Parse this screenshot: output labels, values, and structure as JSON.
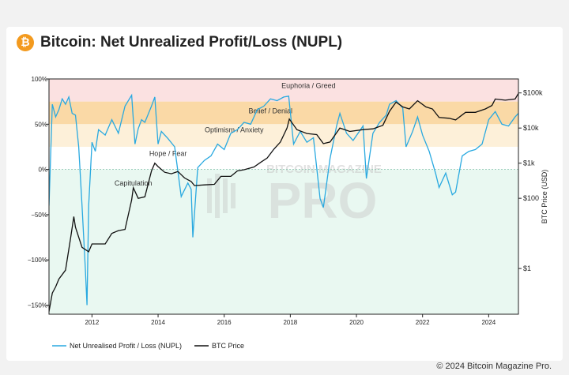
{
  "header": {
    "title": "Bitcoin: Net Unrealized Profit/Loss (NUPL)",
    "logo_glyph": "₿",
    "logo_icon": "bitcoin-icon",
    "logo_color": "#f39a1e"
  },
  "footer": {
    "copyright": "© 2024 Bitcoin Magazine Pro."
  },
  "watermark": {
    "top": "BITCOIN MAGAZINE",
    "bottom": "PRO"
  },
  "chart_data": {
    "type": "line",
    "title": "",
    "xlabel": "",
    "ylabel_left": "",
    "ylabel_right": "BTC Price (USD)",
    "x_range": [
      2010.7,
      2024.9
    ],
    "x_ticks": [
      2012,
      2014,
      2016,
      2018,
      2020,
      2022,
      2024
    ],
    "x_tick_labels": [
      "2012",
      "2014",
      "2016",
      "2018",
      "2020",
      "2022",
      "2024"
    ],
    "y_left_range": [
      -160,
      100
    ],
    "y_left_ticks": [
      100,
      50,
      0,
      -50,
      -100,
      -150
    ],
    "y_left_tick_labels": [
      "100%",
      "50%",
      "0%",
      "−50%",
      "−100%",
      "−150%"
    ],
    "y_right_scale": "log",
    "y_right_range": [
      0.05,
      250000
    ],
    "y_right_ticks": [
      100000,
      10000,
      1000,
      100,
      1
    ],
    "y_right_tick_labels": [
      "$100k",
      "$10k",
      "$1k",
      "$100",
      "$1"
    ],
    "grid": false,
    "legend_position": "bottom-left",
    "zones": [
      {
        "label": "Euphoria / Greed",
        "from": 75,
        "to": 100,
        "color": "#fbe1e1"
      },
      {
        "label": "Belief / Denial",
        "from": 50,
        "to": 75,
        "color": "#fad9a6"
      },
      {
        "label": "Optimism / Anxiety",
        "from": 25,
        "to": 50,
        "color": "#fdf0d9"
      },
      {
        "label": "Hope / Fear",
        "from": 0,
        "to": 25,
        "color": "#ffffff"
      },
      {
        "label": "Capitulation",
        "from": -160,
        "to": 0,
        "color": "#e9f8f1"
      }
    ],
    "series": [
      {
        "name": "Net Unrealised Profit / Loss (NUPL)",
        "axis": "left",
        "color": "#29a9e0",
        "x": [
          2010.7,
          2010.8,
          2010.9,
          2011.0,
          2011.1,
          2011.2,
          2011.3,
          2011.4,
          2011.5,
          2011.6,
          2011.7,
          2011.8,
          2011.85,
          2011.9,
          2012.0,
          2012.1,
          2012.2,
          2012.4,
          2012.6,
          2012.8,
          2013.0,
          2013.2,
          2013.3,
          2013.4,
          2013.5,
          2013.6,
          2013.8,
          2013.9,
          2014.0,
          2014.1,
          2014.3,
          2014.5,
          2014.7,
          2014.9,
          2015.0,
          2015.05,
          2015.2,
          2015.4,
          2015.6,
          2015.8,
          2016.0,
          2016.2,
          2016.4,
          2016.6,
          2016.8,
          2017.0,
          2017.2,
          2017.4,
          2017.6,
          2017.8,
          2017.95,
          2018.1,
          2018.3,
          2018.5,
          2018.7,
          2018.9,
          2019.0,
          2019.2,
          2019.4,
          2019.5,
          2019.7,
          2019.9,
          2020.2,
          2020.3,
          2020.5,
          2020.7,
          2020.9,
          2021.0,
          2021.2,
          2021.4,
          2021.5,
          2021.7,
          2021.85,
          2022.0,
          2022.2,
          2022.4,
          2022.5,
          2022.7,
          2022.9,
          2023.0,
          2023.2,
          2023.4,
          2023.6,
          2023.8,
          2024.0,
          2024.2,
          2024.4,
          2024.6,
          2024.8,
          2024.9
        ],
        "values": [
          -40,
          72,
          58,
          66,
          78,
          72,
          80,
          62,
          60,
          25,
          -40,
          -110,
          -150,
          -40,
          30,
          20,
          44,
          38,
          55,
          40,
          70,
          82,
          28,
          45,
          55,
          52,
          70,
          80,
          28,
          42,
          34,
          25,
          -30,
          -15,
          -22,
          -75,
          2,
          10,
          15,
          28,
          22,
          40,
          44,
          52,
          50,
          66,
          70,
          78,
          76,
          80,
          81,
          28,
          42,
          30,
          35,
          -32,
          -42,
          12,
          48,
          62,
          40,
          32,
          48,
          -10,
          40,
          52,
          60,
          72,
          76,
          68,
          25,
          42,
          58,
          38,
          20,
          -5,
          -20,
          -4,
          -28,
          -25,
          15,
          20,
          22,
          28,
          55,
          64,
          50,
          48,
          58,
          62
        ]
      },
      {
        "name": "BTC Price",
        "axis": "right",
        "color": "#111111",
        "x": [
          2010.55,
          2010.7,
          2010.8,
          2010.9,
          2011.0,
          2011.2,
          2011.35,
          2011.45,
          2011.5,
          2011.7,
          2011.9,
          2012.0,
          2012.2,
          2012.4,
          2012.6,
          2012.8,
          2013.0,
          2013.2,
          2013.25,
          2013.4,
          2013.6,
          2013.8,
          2013.9,
          2014.0,
          2014.2,
          2014.4,
          2014.6,
          2014.8,
          2015.0,
          2015.1,
          2015.4,
          2015.7,
          2015.9,
          2016.2,
          2016.4,
          2016.6,
          2016.9,
          2017.1,
          2017.3,
          2017.5,
          2017.7,
          2017.9,
          2017.97,
          2018.2,
          2018.5,
          2018.8,
          2019.0,
          2019.2,
          2019.5,
          2019.8,
          2020.2,
          2020.5,
          2020.8,
          2021.0,
          2021.2,
          2021.4,
          2021.6,
          2021.85,
          2022.1,
          2022.3,
          2022.5,
          2022.8,
          2023.0,
          2023.3,
          2023.6,
          2023.9,
          2024.1,
          2024.2,
          2024.5,
          2024.8,
          2024.9
        ],
        "values": [
          0.07,
          0.06,
          0.2,
          0.3,
          0.5,
          0.9,
          7,
          30,
          15,
          4,
          3,
          5,
          5,
          5,
          10,
          12,
          13,
          90,
          200,
          100,
          110,
          600,
          1000,
          800,
          550,
          500,
          580,
          380,
          300,
          230,
          240,
          250,
          420,
          420,
          600,
          650,
          780,
          1050,
          1400,
          2500,
          4000,
          10000,
          18000,
          9000,
          7000,
          6500,
          3600,
          4000,
          10000,
          8000,
          9000,
          9500,
          12000,
          30000,
          55000,
          40000,
          35000,
          60000,
          40000,
          35000,
          20000,
          19000,
          17000,
          28000,
          28000,
          35000,
          44000,
          67000,
          62000,
          67000,
          97000
        ]
      }
    ]
  },
  "legend": {
    "nupl_label": "Net Unrealised Profit / Loss (NUPL)",
    "btc_label": "BTC Price"
  }
}
